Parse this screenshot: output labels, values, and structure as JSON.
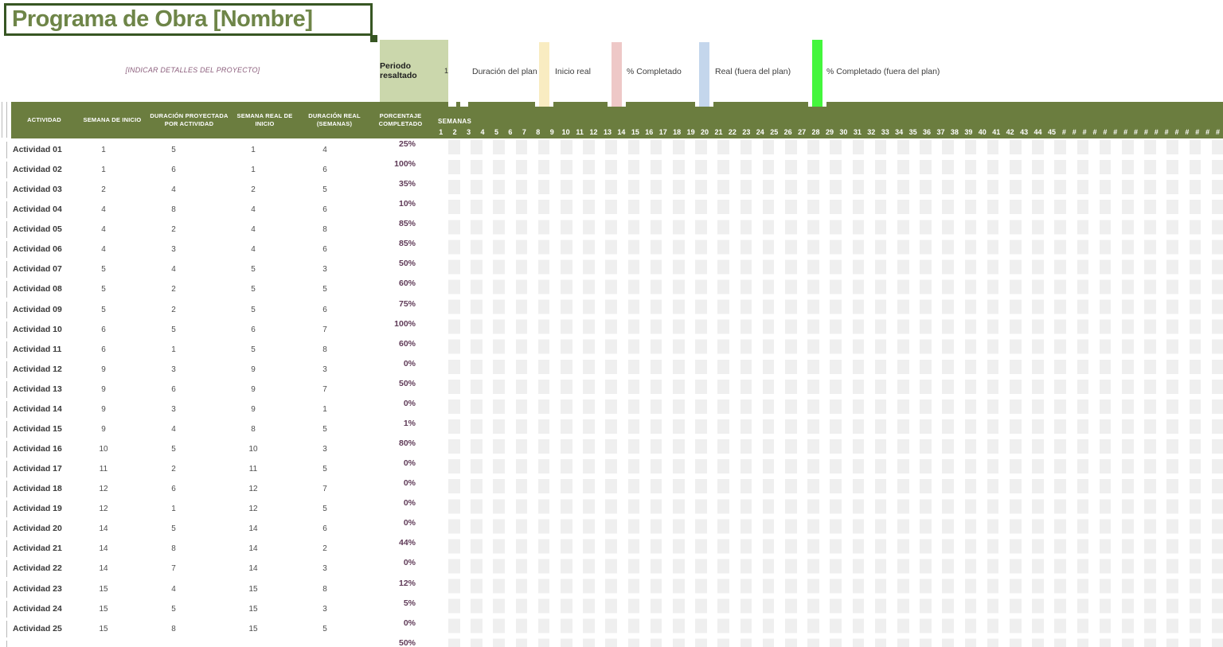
{
  "title": "Programa de Obra [Nombre]",
  "subtitle": "[INDICAR DETALLES DEL PROYECTO]",
  "legend": {
    "highlight_label": "Periodo resaltado",
    "highlight_value": "1",
    "entries": [
      {
        "label": "Duración del plan",
        "swatch": null
      },
      {
        "label": "Inicio real",
        "swatch": "swatch_yellow"
      },
      {
        "label": "% Completado",
        "swatch": "swatch_pink"
      },
      {
        "label": "Real (fuera del plan)",
        "swatch": "swatch_blue"
      },
      {
        "label": "% Completado (fuera del plan)",
        "swatch": "swatch_bright_green"
      }
    ]
  },
  "table": {
    "columns": [
      "ACTIVIDAD",
      "SEMANA DE INICIO",
      "DURACIÓN PROYECTADA POR ACTIVIDAD",
      "SEMANA REAL DE INICIO",
      "DURACIÓN REAL (SEMANAS)",
      "PORCENTAJE COMPLETADO"
    ],
    "rows": [
      {
        "name": "Actividad 01",
        "semana_inicio": "1",
        "duracion_proyectada": "5",
        "semana_real": "1",
        "duracion_real": "4",
        "porcentaje": "25%"
      },
      {
        "name": "Actividad 02",
        "semana_inicio": "1",
        "duracion_proyectada": "6",
        "semana_real": "1",
        "duracion_real": "6",
        "porcentaje": "100%"
      },
      {
        "name": "Actividad 03",
        "semana_inicio": "2",
        "duracion_proyectada": "4",
        "semana_real": "2",
        "duracion_real": "5",
        "porcentaje": "35%"
      },
      {
        "name": "Actividad 04",
        "semana_inicio": "4",
        "duracion_proyectada": "8",
        "semana_real": "4",
        "duracion_real": "6",
        "porcentaje": "10%"
      },
      {
        "name": "Actividad 05",
        "semana_inicio": "4",
        "duracion_proyectada": "2",
        "semana_real": "4",
        "duracion_real": "8",
        "porcentaje": "85%"
      },
      {
        "name": "Actividad 06",
        "semana_inicio": "4",
        "duracion_proyectada": "3",
        "semana_real": "4",
        "duracion_real": "6",
        "porcentaje": "85%"
      },
      {
        "name": "Actividad 07",
        "semana_inicio": "5",
        "duracion_proyectada": "4",
        "semana_real": "5",
        "duracion_real": "3",
        "porcentaje": "50%"
      },
      {
        "name": "Actividad 08",
        "semana_inicio": "5",
        "duracion_proyectada": "2",
        "semana_real": "5",
        "duracion_real": "5",
        "porcentaje": "60%"
      },
      {
        "name": "Actividad 09",
        "semana_inicio": "5",
        "duracion_proyectada": "2",
        "semana_real": "5",
        "duracion_real": "6",
        "porcentaje": "75%"
      },
      {
        "name": "Actividad 10",
        "semana_inicio": "6",
        "duracion_proyectada": "5",
        "semana_real": "6",
        "duracion_real": "7",
        "porcentaje": "100%"
      },
      {
        "name": "Actividad 11",
        "semana_inicio": "6",
        "duracion_proyectada": "1",
        "semana_real": "5",
        "duracion_real": "8",
        "porcentaje": "60%"
      },
      {
        "name": "Actividad 12",
        "semana_inicio": "9",
        "duracion_proyectada": "3",
        "semana_real": "9",
        "duracion_real": "3",
        "porcentaje": "0%"
      },
      {
        "name": "Actividad 13",
        "semana_inicio": "9",
        "duracion_proyectada": "6",
        "semana_real": "9",
        "duracion_real": "7",
        "porcentaje": "50%"
      },
      {
        "name": "Actividad 14",
        "semana_inicio": "9",
        "duracion_proyectada": "3",
        "semana_real": "9",
        "duracion_real": "1",
        "porcentaje": "0%"
      },
      {
        "name": "Actividad 15",
        "semana_inicio": "9",
        "duracion_proyectada": "4",
        "semana_real": "8",
        "duracion_real": "5",
        "porcentaje": "1%"
      },
      {
        "name": "Actividad 16",
        "semana_inicio": "10",
        "duracion_proyectada": "5",
        "semana_real": "10",
        "duracion_real": "3",
        "porcentaje": "80%"
      },
      {
        "name": "Actividad 17",
        "semana_inicio": "11",
        "duracion_proyectada": "2",
        "semana_real": "11",
        "duracion_real": "5",
        "porcentaje": "0%"
      },
      {
        "name": "Actividad 18",
        "semana_inicio": "12",
        "duracion_proyectada": "6",
        "semana_real": "12",
        "duracion_real": "7",
        "porcentaje": "0%"
      },
      {
        "name": "Actividad 19",
        "semana_inicio": "12",
        "duracion_proyectada": "1",
        "semana_real": "12",
        "duracion_real": "5",
        "porcentaje": "0%"
      },
      {
        "name": "Actividad 20",
        "semana_inicio": "14",
        "duracion_proyectada": "5",
        "semana_real": "14",
        "duracion_real": "6",
        "porcentaje": "0%"
      },
      {
        "name": "Actividad 21",
        "semana_inicio": "14",
        "duracion_proyectada": "8",
        "semana_real": "14",
        "duracion_real": "2",
        "porcentaje": "44%"
      },
      {
        "name": "Actividad 22",
        "semana_inicio": "14",
        "duracion_proyectada": "7",
        "semana_real": "14",
        "duracion_real": "3",
        "porcentaje": "0%"
      },
      {
        "name": "Actividad 23",
        "semana_inicio": "15",
        "duracion_proyectada": "4",
        "semana_real": "15",
        "duracion_real": "8",
        "porcentaje": "12%"
      },
      {
        "name": "Actividad 24",
        "semana_inicio": "15",
        "duracion_proyectada": "5",
        "semana_real": "15",
        "duracion_real": "3",
        "porcentaje": "5%"
      },
      {
        "name": "Actividad 25",
        "semana_inicio": "15",
        "duracion_proyectada": "8",
        "semana_real": "15",
        "duracion_real": "5",
        "porcentaje": "0%"
      },
      {
        "name": "",
        "semana_inicio": "",
        "duracion_proyectada": "",
        "semana_real": "",
        "duracion_real": "",
        "porcentaje": "50%"
      }
    ]
  },
  "gantt": {
    "semanas_label": "SEMANAS",
    "week_numbers": [
      1,
      2,
      3,
      4,
      5,
      6,
      7,
      8,
      9,
      10,
      11,
      12,
      13,
      14,
      15,
      16,
      17,
      18,
      19,
      20,
      21,
      22,
      23,
      24,
      25,
      26,
      27,
      28,
      29,
      30,
      31,
      32,
      33,
      34,
      35,
      36,
      37,
      38,
      39,
      40,
      41,
      42,
      43,
      44,
      45
    ],
    "week_overflow_mark": "#",
    "week_overflow_count": 16
  },
  "colors": {
    "title_green": "#6e8548",
    "border_green": "#375623",
    "subtitle_plum": "#8c5f7d",
    "olive": "#6b7d3f",
    "sage": "#cbd7ac",
    "swatch_yellow": "#f9ecc1",
    "swatch_pink": "#eec8c7",
    "swatch_blue": "#c4d6ec",
    "swatch_bright_green": "#44f63c",
    "pct_plum": "#5f3a57",
    "grid_gray": "#efefef"
  }
}
